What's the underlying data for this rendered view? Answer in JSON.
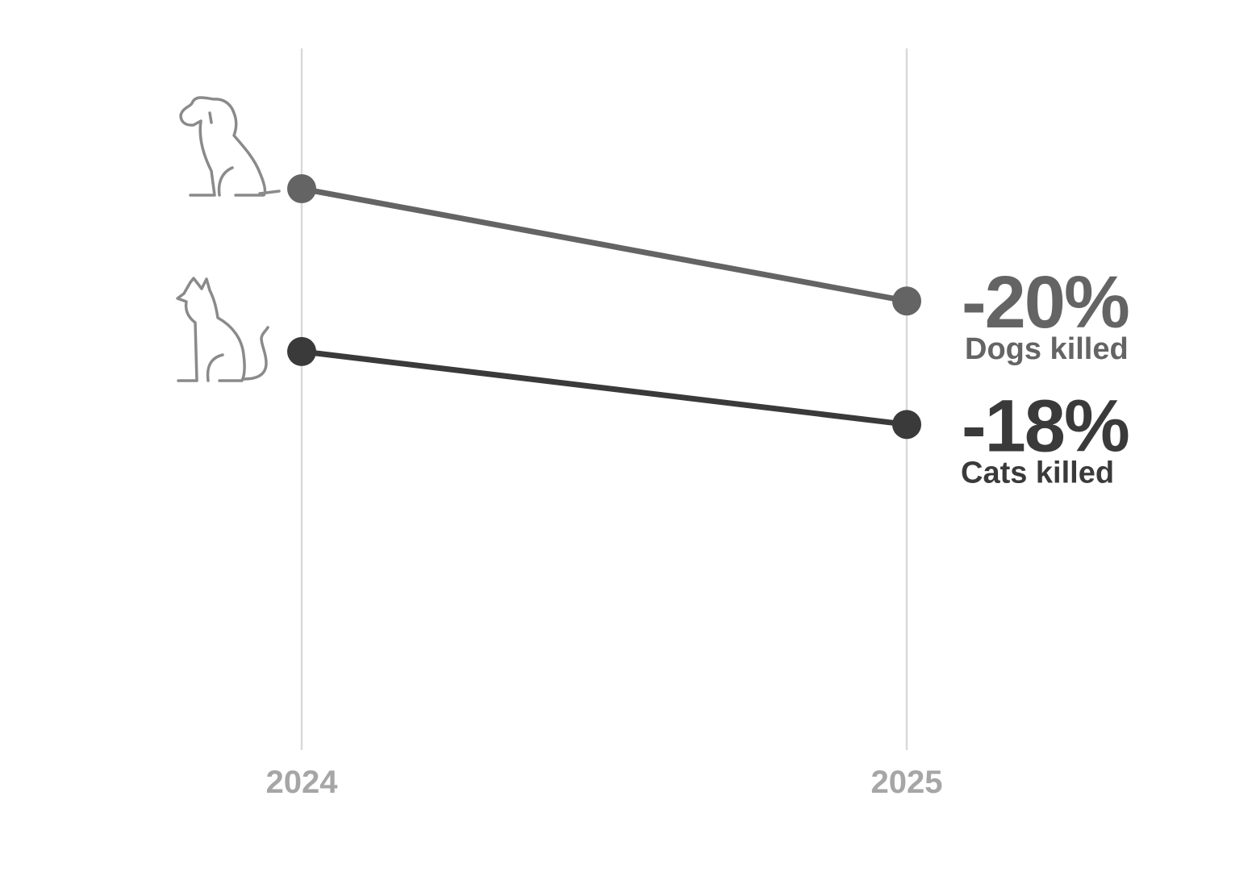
{
  "chart_data": {
    "type": "line",
    "x": [
      "2024",
      "2025"
    ],
    "ylim": [
      0,
      1.25
    ],
    "grid": "vertical",
    "legend": "none",
    "series": [
      {
        "name": "Dogs killed",
        "change_label": "-20%",
        "icon": "dog-icon",
        "color": "#646464",
        "values": [
          1.0,
          0.8
        ]
      },
      {
        "name": "Cats killed",
        "change_label": "-18%",
        "icon": "cat-icon",
        "color": "#3a3a3a",
        "values": [
          0.71,
          0.58
        ]
      }
    ]
  },
  "colors": {
    "gridline": "#d9d9d9",
    "tick_label": "#a6a6a6",
    "icon": "#8a8a8a"
  }
}
